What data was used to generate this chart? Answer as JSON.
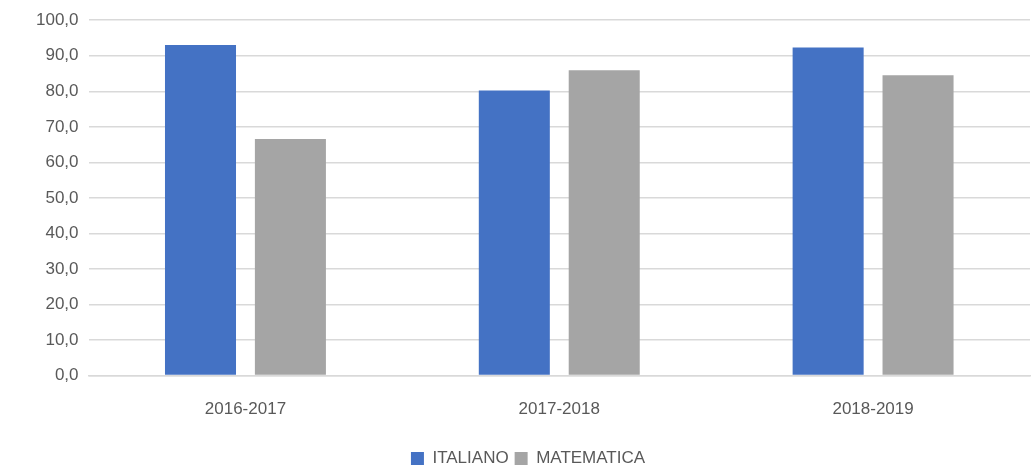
{
  "chart_data": {
    "type": "bar",
    "categories": [
      "2016-2017",
      "2017-2018",
      "2018-2019"
    ],
    "series": [
      {
        "name": "ITALIANO",
        "color": "#4472c4",
        "values": [
          93.0,
          80.2,
          92.3
        ]
      },
      {
        "name": "MATEMATICA",
        "color": "#a5a5a5",
        "values": [
          66.6,
          85.9,
          84.5
        ]
      }
    ],
    "ylim": [
      0,
      100
    ],
    "yticks": [
      {
        "value": 0,
        "label": "0,0"
      },
      {
        "value": 10,
        "label": "10,0"
      },
      {
        "value": 20,
        "label": "20,0"
      },
      {
        "value": 30,
        "label": "30,0"
      },
      {
        "value": 40,
        "label": "40,0"
      },
      {
        "value": 50,
        "label": "50,0"
      },
      {
        "value": 60,
        "label": "60,0"
      },
      {
        "value": 70,
        "label": "70,0"
      },
      {
        "value": 80,
        "label": "80,0"
      },
      {
        "value": 90,
        "label": "90,0"
      },
      {
        "value": 100,
        "label": "100,0"
      }
    ],
    "grid": "y",
    "legend": "bottom"
  }
}
